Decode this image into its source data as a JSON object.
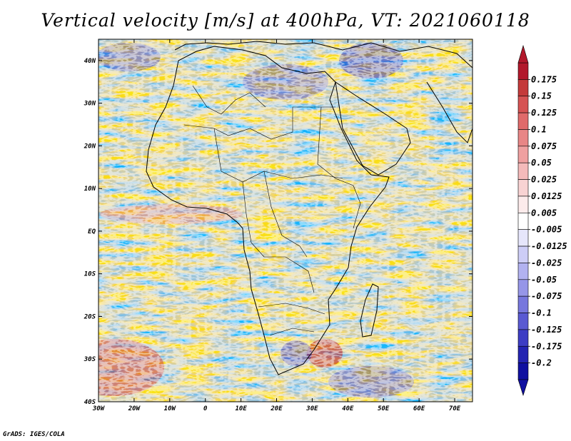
{
  "title": "Vertical velocity [m/s] at 400hPa, VT: 2021060118",
  "credit": "GrADS: IGES/COLA",
  "map": {
    "region": "Africa",
    "variable": "Vertical velocity",
    "units": "m/s",
    "level": "400hPa",
    "valid_time": "2021060118",
    "lon_range": [
      -30,
      75
    ],
    "lat_range": [
      -40,
      45
    ],
    "lat_ticks": [
      {
        "value": 40,
        "label": "40N"
      },
      {
        "value": 30,
        "label": "30N"
      },
      {
        "value": 20,
        "label": "20N"
      },
      {
        "value": 10,
        "label": "10N"
      },
      {
        "value": 0,
        "label": "EQ"
      },
      {
        "value": -10,
        "label": "10S"
      },
      {
        "value": -20,
        "label": "20S"
      },
      {
        "value": -30,
        "label": "30S"
      },
      {
        "value": -40,
        "label": "40S"
      }
    ],
    "lon_ticks": [
      {
        "value": -30,
        "label": "30W"
      },
      {
        "value": -20,
        "label": "20W"
      },
      {
        "value": -10,
        "label": "10W"
      },
      {
        "value": 0,
        "label": "0"
      },
      {
        "value": 10,
        "label": "10E"
      },
      {
        "value": 20,
        "label": "20E"
      },
      {
        "value": 30,
        "label": "30E"
      },
      {
        "value": 40,
        "label": "40E"
      },
      {
        "value": 50,
        "label": "50E"
      },
      {
        "value": 60,
        "label": "60E"
      },
      {
        "value": 70,
        "label": "70E"
      }
    ]
  },
  "colorbar": {
    "labels": [
      "0.175",
      "0.15",
      "0.125",
      "0.1",
      "0.075",
      "0.05",
      "0.025",
      "0.0125",
      "0.005",
      "-0.005",
      "-0.0125",
      "-0.025",
      "-0.05",
      "-0.075",
      "-0.1",
      "-0.125",
      "-0.175",
      "-0.2"
    ],
    "colors": [
      "#b2182b",
      "#c43a3a",
      "#d65353",
      "#e06a6a",
      "#e88686",
      "#efa0a0",
      "#f4baba",
      "#f8d3d3",
      "#fcebeb",
      "#ffffff",
      "#e6e6fb",
      "#cdcdf6",
      "#b2b2f0",
      "#9696e8",
      "#7777dd",
      "#5a5ad2",
      "#3d3dc4",
      "#2424b2",
      "#1010a0"
    ]
  }
}
